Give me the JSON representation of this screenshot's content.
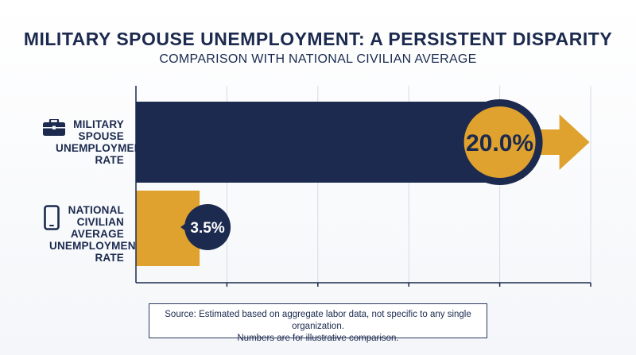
{
  "title": "MILITARY SPOUSE UNEMPLOYMENT: A PERSISTENT DISPARITY",
  "subtitle": "COMPARISON WITH NATIONAL CIVILIAN AVERAGE",
  "colors": {
    "navy": "#1b2a4e",
    "gold": "#e0a22e",
    "grid": "#d6dae2"
  },
  "chart_data": {
    "type": "bar",
    "orientation": "horizontal",
    "categories": [
      "MILITARY SPOUSE UNEMPLOYMENT RATE",
      "NATIONAL CIVILIAN AVERAGE UNEMPLOYMENT RATE"
    ],
    "values": [
      20.0,
      3.5
    ],
    "data_labels": [
      "20.0%",
      "3.5%"
    ],
    "category_icons": [
      "briefcase-icon",
      "smartphone-icon"
    ],
    "bar_colors": [
      "#1b2a4e",
      "#e0a22e"
    ],
    "xlim": [
      0,
      25
    ],
    "grid": true,
    "legend": "none",
    "title": "MILITARY SPOUSE UNEMPLOYMENT: A PERSISTENT DISPARITY",
    "subtitle": "COMPARISON WITH NATIONAL CIVILIAN AVERAGE",
    "xlabel": "",
    "ylabel": ""
  },
  "source": {
    "line1": "Source: Estimated based on aggregate labor data, not specific to any single organization.",
    "line2": "Numbers are for illustrative comparison."
  }
}
